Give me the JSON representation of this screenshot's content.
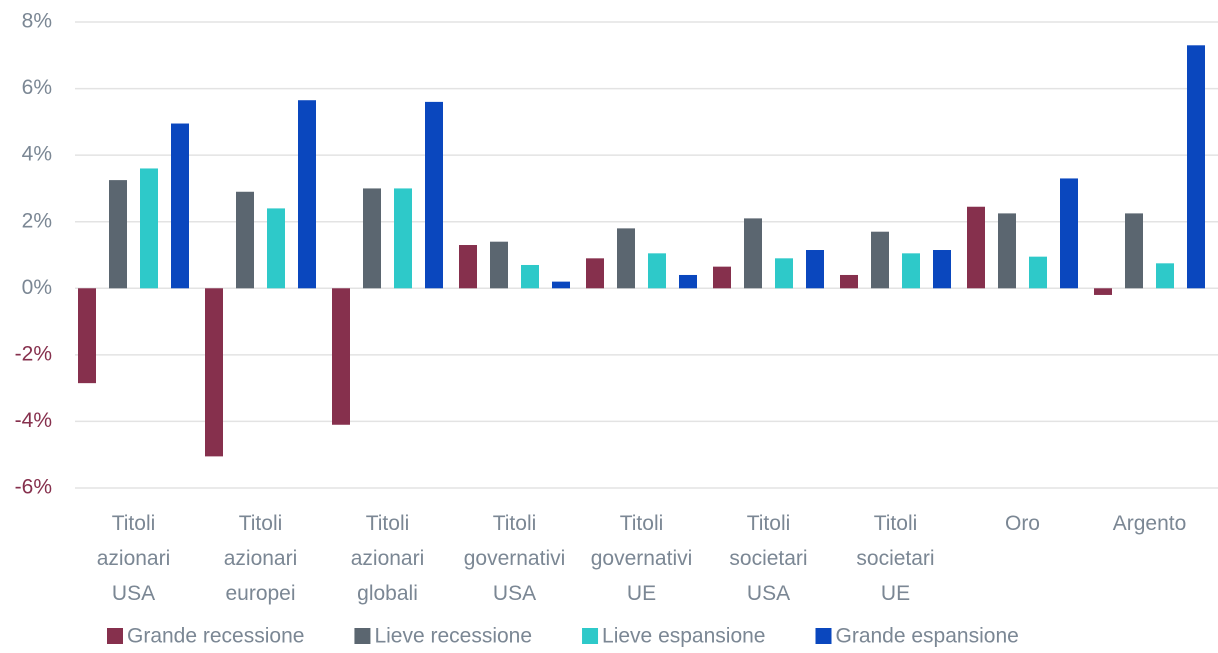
{
  "chart_data": {
    "type": "bar",
    "categories": [
      "Titoli azionari USA",
      "Titoli azionari europei",
      "Titoli azionari globali",
      "Titoli governativi USA",
      "Titoli governativi UE",
      "Titoli societari USA",
      "Titoli societari UE",
      "Oro",
      "Argento"
    ],
    "series": [
      {
        "name": "Grande recessione",
        "color": "#86304d",
        "values": [
          -2.85,
          -5.05,
          -4.1,
          1.3,
          0.9,
          0.65,
          0.4,
          2.45,
          -0.2
        ]
      },
      {
        "name": "Lieve recessione",
        "color": "#5b6670",
        "values": [
          3.25,
          2.9,
          3.0,
          1.4,
          1.8,
          2.1,
          1.7,
          2.25,
          2.25
        ]
      },
      {
        "name": "Lieve espansione",
        "color": "#2ec9c9",
        "values": [
          3.6,
          2.4,
          3.0,
          0.7,
          1.05,
          0.9,
          1.05,
          0.95,
          0.75
        ]
      },
      {
        "name": "Grande espansione",
        "color": "#0a47be",
        "values": [
          4.95,
          5.65,
          5.6,
          0.2,
          0.4,
          1.15,
          1.15,
          3.3,
          7.3
        ]
      }
    ],
    "ylim": [
      -6,
      8
    ],
    "yticks": [
      {
        "value": -6,
        "label": "-6%"
      },
      {
        "value": -4,
        "label": "-4%"
      },
      {
        "value": -2,
        "label": "-2%"
      },
      {
        "value": 0,
        "label": "0%"
      },
      {
        "value": 2,
        "label": "2%"
      },
      {
        "value": 4,
        "label": "4%"
      },
      {
        "value": 6,
        "label": "6%"
      },
      {
        "value": 8,
        "label": "8%"
      }
    ],
    "negative_tick_color": "#86304d",
    "grid": true,
    "legend": "bottom"
  }
}
